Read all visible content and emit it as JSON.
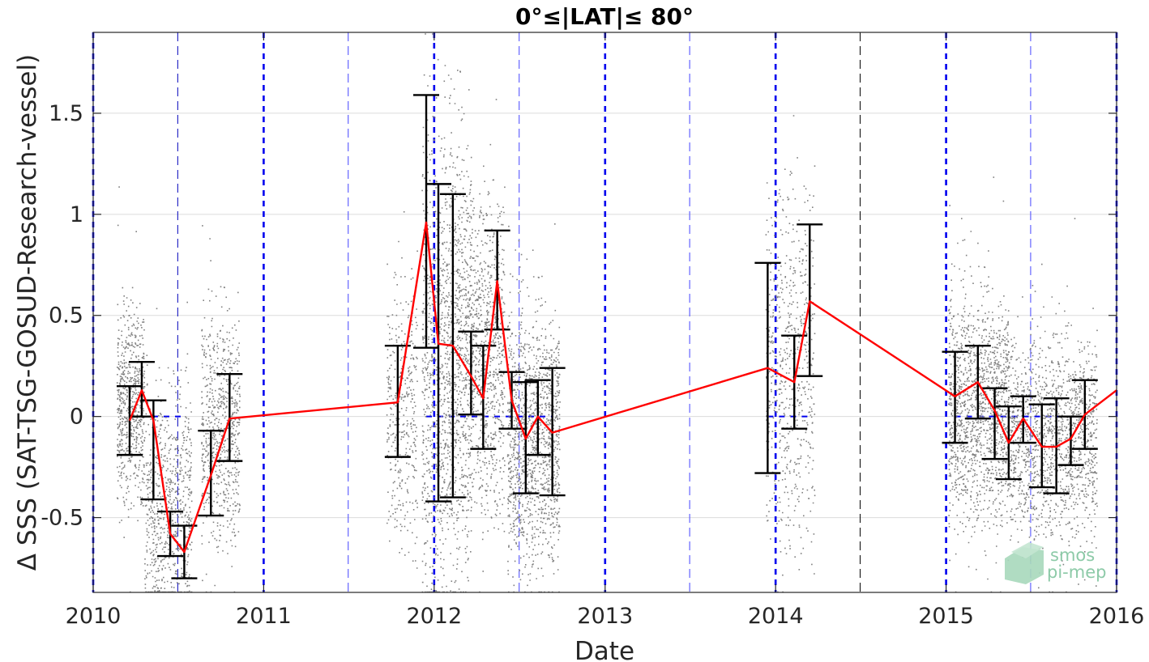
{
  "chart_data": {
    "type": "line",
    "title": "0°≤|LAT|≤ 80°",
    "xlabel": "Date",
    "ylabel": "Δ SSS (SAT-TSG-GOSUD-Research-vessel)",
    "xlim": [
      "2010-01-01",
      "2016-01-01"
    ],
    "ylim": [
      -0.87,
      1.9
    ],
    "x_ticks": [
      "2010",
      "2011",
      "2012",
      "2013",
      "2014",
      "2015",
      "2016"
    ],
    "y_ticks": [
      -0.5,
      0,
      0.5,
      1,
      1.5
    ],
    "y_tick_labels": [
      "-0.5",
      "0",
      "0.5",
      "1",
      "1.5"
    ],
    "grid": "horizontal",
    "series": [
      {
        "color": "#ff0000",
        "style": "solid-line",
        "points": [
          {
            "x": "2010-03-20",
            "y": -0.02,
            "lo": -0.19,
            "hi": 0.15
          },
          {
            "x": "2010-04-15",
            "y": 0.13,
            "lo": 0.0,
            "hi": 0.27
          },
          {
            "x": "2010-05-10",
            "y": -0.02,
            "lo": -0.41,
            "hi": 0.08
          },
          {
            "x": "2010-06-15",
            "y": -0.58,
            "lo": -0.69,
            "hi": -0.47
          },
          {
            "x": "2010-07-15",
            "y": -0.67,
            "lo": -0.8,
            "hi": -0.54
          },
          {
            "x": "2010-09-10",
            "y": -0.29,
            "lo": -0.49,
            "hi": -0.07
          },
          {
            "x": "2010-10-20",
            "y": -0.01,
            "lo": -0.22,
            "hi": 0.21
          },
          {
            "x": "2011-10-15",
            "y": 0.07,
            "lo": -0.2,
            "hi": 0.35
          },
          {
            "x": "2011-12-15",
            "y": 0.96,
            "lo": 0.34,
            "hi": 1.59
          },
          {
            "x": "2012-01-10",
            "y": 0.36,
            "lo": -0.42,
            "hi": 1.15
          },
          {
            "x": "2012-02-10",
            "y": 0.35,
            "lo": -0.4,
            "hi": 1.1
          },
          {
            "x": "2012-03-20",
            "y": 0.2,
            "lo": 0.01,
            "hi": 0.42
          },
          {
            "x": "2012-04-15",
            "y": 0.09,
            "lo": -0.16,
            "hi": 0.35
          },
          {
            "x": "2012-05-15",
            "y": 0.67,
            "lo": 0.43,
            "hi": 0.92
          },
          {
            "x": "2012-06-15",
            "y": 0.08,
            "lo": -0.06,
            "hi": 0.22
          },
          {
            "x": "2012-07-15",
            "y": -0.11,
            "lo": -0.38,
            "hi": 0.17
          },
          {
            "x": "2012-08-10",
            "y": 0.0,
            "lo": -0.19,
            "hi": 0.18
          },
          {
            "x": "2012-09-10",
            "y": -0.08,
            "lo": -0.39,
            "hi": 0.24
          },
          {
            "x": "2013-12-15",
            "y": 0.24,
            "lo": -0.28,
            "hi": 0.76
          },
          {
            "x": "2014-02-10",
            "y": 0.17,
            "lo": -0.06,
            "hi": 0.4
          },
          {
            "x": "2014-03-15",
            "y": 0.57,
            "lo": 0.2,
            "hi": 0.95
          },
          {
            "x": "2015-01-20",
            "y": 0.1,
            "lo": -0.13,
            "hi": 0.32
          },
          {
            "x": "2015-03-10",
            "y": 0.17,
            "lo": -0.01,
            "hi": 0.35
          },
          {
            "x": "2015-04-15",
            "y": 0.03,
            "lo": -0.21,
            "hi": 0.14
          },
          {
            "x": "2015-05-15",
            "y": -0.13,
            "lo": -0.31,
            "hi": 0.05
          },
          {
            "x": "2015-06-15",
            "y": -0.01,
            "lo": -0.13,
            "hi": 0.1
          },
          {
            "x": "2015-07-25",
            "y": -0.15,
            "lo": -0.35,
            "hi": 0.06
          },
          {
            "x": "2015-08-25",
            "y": -0.15,
            "lo": -0.38,
            "hi": 0.09
          },
          {
            "x": "2015-09-25",
            "y": -0.11,
            "lo": -0.24,
            "hi": 0.0
          },
          {
            "x": "2015-10-25",
            "y": 0.01,
            "lo": -0.16,
            "hi": 0.18
          },
          {
            "x": "2016-01-01",
            "y": 0.13
          }
        ]
      }
    ],
    "scatter_color": "#808080",
    "scatter_clusters": [
      {
        "start": "2010-02-20",
        "end": "2010-04-20",
        "center": 0.05,
        "spread": 0.22,
        "count": 650
      },
      {
        "start": "2010-04-20",
        "end": "2010-07-30",
        "center": -0.45,
        "spread": 0.28,
        "count": 750
      },
      {
        "start": "2010-08-20",
        "end": "2010-11-10",
        "center": -0.05,
        "spread": 0.28,
        "count": 700
      },
      {
        "start": "2011-09-20",
        "end": "2011-11-25",
        "center": 0.05,
        "spread": 0.35,
        "count": 380
      },
      {
        "start": "2011-12-05",
        "end": "2012-01-20",
        "center": 0.2,
        "spread": 0.6,
        "count": 600
      },
      {
        "start": "2012-01-20",
        "end": "2012-03-20",
        "center": 0.35,
        "spread": 0.55,
        "count": 900
      },
      {
        "start": "2012-03-20",
        "end": "2012-05-30",
        "center": 0.3,
        "spread": 0.38,
        "count": 800
      },
      {
        "start": "2012-06-05",
        "end": "2012-09-25",
        "center": -0.1,
        "spread": 0.32,
        "count": 1300
      },
      {
        "start": "2013-12-10",
        "end": "2014-03-25",
        "center": 0.25,
        "spread": 0.45,
        "count": 650
      },
      {
        "start": "2015-01-05",
        "end": "2015-05-15",
        "center": 0.05,
        "spread": 0.28,
        "count": 1400
      },
      {
        "start": "2015-05-15",
        "end": "2015-11-20",
        "center": -0.1,
        "spread": 0.24,
        "count": 1500
      }
    ],
    "zero_line_segments": [
      {
        "start": "2010-03-20",
        "end": "2010-07-15",
        "y": 0
      },
      {
        "start": "2011-12-15",
        "end": "2012-09-10",
        "y": 0
      },
      {
        "start": "2013-12-15",
        "end": "2014-03-15",
        "y": 0
      },
      {
        "start": "2015-01-20",
        "end": "2015-10-25",
        "y": 0
      }
    ],
    "vertical_lines": [
      {
        "x": "2010-01-01",
        "style": "thick-dash",
        "color": "#0000ee"
      },
      {
        "x": "2010-07-01",
        "style": "thin-dash",
        "color": "#0000bb"
      },
      {
        "x": "2011-01-01",
        "style": "thick-dash",
        "color": "#0000ee"
      },
      {
        "x": "2011-07-01",
        "style": "thin-dash",
        "color": "#4444ff"
      },
      {
        "x": "2012-01-01",
        "style": "thick-dash",
        "color": "#0000ee"
      },
      {
        "x": "2012-07-01",
        "style": "thin-dash",
        "color": "#4444ff"
      },
      {
        "x": "2013-01-01",
        "style": "thick-dash",
        "color": "#0000ee"
      },
      {
        "x": "2013-07-01",
        "style": "thin-dash",
        "color": "#4444ff"
      },
      {
        "x": "2014-01-01",
        "style": "thick-dash",
        "color": "#0000ee"
      },
      {
        "x": "2014-07-01",
        "style": "thin-dash",
        "color": "#000000"
      },
      {
        "x": "2015-01-01",
        "style": "thick-dash",
        "color": "#0000ee"
      },
      {
        "x": "2015-07-01",
        "style": "thin-dash",
        "color": "#4444ff"
      },
      {
        "x": "2016-01-01",
        "style": "thick-dash",
        "color": "#0000ee"
      }
    ]
  },
  "logo": {
    "line1": "smos",
    "line2": "pi-mep",
    "color": "#8dcaa8"
  }
}
